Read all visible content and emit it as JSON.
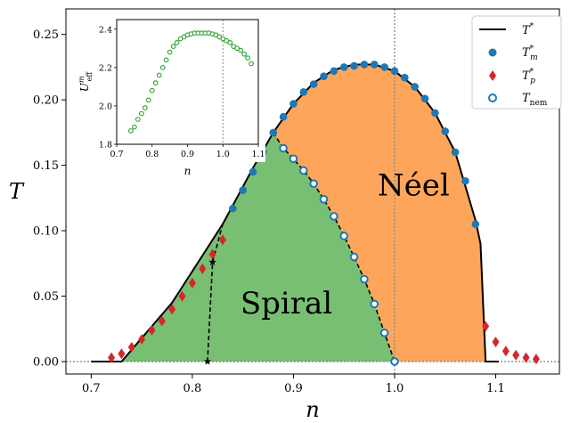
{
  "chart_data": [
    {
      "type": "line",
      "xlabel": "n",
      "ylabel": "T",
      "xlim": [
        0.675,
        1.163
      ],
      "ylim": [
        -0.0095,
        0.2695
      ],
      "xticks": [
        "0.7",
        "0.8",
        "0.9",
        "1.0",
        "1.1"
      ],
      "xtick_values": [
        0.7,
        0.8,
        0.9,
        1.0,
        1.1
      ],
      "yticks": [
        "0.00",
        "0.05",
        "0.10",
        "0.15",
        "0.20",
        "0.25"
      ],
      "ytick_values": [
        0.0,
        0.05,
        0.1,
        0.15,
        0.2,
        0.25
      ],
      "vertical_reference_x": 1.0,
      "horizontal_reference_y": 0.0,
      "region_labels": [
        {
          "text": "Spiral",
          "x": 0.893,
          "y": 0.045
        },
        {
          "text": "Néel",
          "x": 1.01,
          "y": 0.135
        }
      ],
      "legend": {
        "placement": "top-right",
        "entries": [
          {
            "label": "T*",
            "marker": "line",
            "color": "#000000"
          },
          {
            "label": "T*m",
            "marker": "circle",
            "color": "#1f77b4"
          },
          {
            "label": "T*p",
            "marker": "diamond",
            "color": "#d62728"
          },
          {
            "label": "Tnem",
            "marker": "open-circle",
            "color": "#1f77b4"
          }
        ]
      },
      "colors": {
        "spiral": "#78be73",
        "neel": "#fda65b",
        "tm": "#1f77b4",
        "tp": "#d62728",
        "tnem_edge": "#1f77b4"
      },
      "series": [
        {
          "name": "T*",
          "x": [
            0.7,
            0.73,
            0.78,
            0.83,
            0.86,
            0.88,
            0.9,
            0.92,
            0.94,
            0.96,
            0.98,
            1.0,
            1.02,
            1.04,
            1.06,
            1.08,
            1.085,
            1.09,
            1.103
          ],
          "y": [
            0.0,
            0.0,
            0.045,
            0.105,
            0.148,
            0.175,
            0.197,
            0.213,
            0.223,
            0.227,
            0.227,
            0.222,
            0.21,
            0.19,
            0.16,
            0.108,
            0.09,
            0.0,
            0.0
          ]
        },
        {
          "name": "T*m",
          "x": [
            0.84,
            0.85,
            0.86,
            0.87,
            0.88,
            0.89,
            0.9,
            0.91,
            0.92,
            0.93,
            0.94,
            0.95,
            0.96,
            0.97,
            0.98,
            0.99,
            1.0,
            1.01,
            1.02,
            1.03,
            1.04,
            1.05,
            1.06,
            1.07,
            1.08
          ],
          "y": [
            0.117,
            0.131,
            0.145,
            0.16,
            0.175,
            0.187,
            0.197,
            0.206,
            0.212,
            0.218,
            0.222,
            0.225,
            0.226,
            0.227,
            0.227,
            0.225,
            0.222,
            0.217,
            0.21,
            0.201,
            0.19,
            0.176,
            0.16,
            0.138,
            0.105
          ]
        },
        {
          "name": "T*p",
          "x": [
            0.72,
            0.73,
            0.74,
            0.75,
            0.76,
            0.77,
            0.78,
            0.79,
            0.8,
            0.81,
            0.82,
            0.83,
            1.09,
            1.1,
            1.11,
            1.12,
            1.13,
            1.14
          ],
          "y": [
            0.003,
            0.006,
            0.011,
            0.017,
            0.024,
            0.031,
            0.04,
            0.05,
            0.06,
            0.071,
            0.082,
            0.093,
            0.027,
            0.015,
            0.008,
            0.005,
            0.003,
            0.002
          ]
        },
        {
          "name": "Tnem",
          "x": [
            0.89,
            0.9,
            0.91,
            0.92,
            0.93,
            0.94,
            0.95,
            0.96,
            0.97,
            0.98,
            0.99,
            1.0
          ],
          "y": [
            0.163,
            0.155,
            0.146,
            0.136,
            0.124,
            0.111,
            0.096,
            0.08,
            0.063,
            0.044,
            0.022,
            0.0
          ]
        },
        {
          "name": "Spiral boundary",
          "x": [
            0.815,
            0.82
          ],
          "y": [
            0.0,
            0.076
          ]
        }
      ]
    },
    {
      "type": "scatter",
      "xlabel": "n",
      "ylabel": "U^m_eff",
      "xlim": [
        0.7,
        1.1
      ],
      "ylim": [
        1.8,
        2.45
      ],
      "xticks": [
        "0.7",
        "0.8",
        "0.9",
        "1.0",
        "1.1"
      ],
      "xtick_values": [
        0.7,
        0.8,
        0.9,
        1.0,
        1.1
      ],
      "yticks": [
        "1.8",
        "2.0",
        "2.2",
        "2.4"
      ],
      "ytick_values": [
        1.8,
        2.0,
        2.2,
        2.4
      ],
      "vertical_reference_x": 1.0,
      "color": "#2ca02c",
      "x": [
        0.74,
        0.75,
        0.76,
        0.77,
        0.78,
        0.79,
        0.8,
        0.81,
        0.82,
        0.83,
        0.84,
        0.85,
        0.86,
        0.87,
        0.88,
        0.89,
        0.9,
        0.91,
        0.92,
        0.93,
        0.94,
        0.95,
        0.96,
        0.97,
        0.98,
        0.99,
        1.0,
        1.01,
        1.02,
        1.03,
        1.04,
        1.05,
        1.06,
        1.07,
        1.08
      ],
      "y": [
        1.87,
        1.89,
        1.93,
        1.96,
        1.99,
        2.03,
        2.08,
        2.12,
        2.16,
        2.2,
        2.24,
        2.28,
        2.31,
        2.33,
        2.35,
        2.36,
        2.37,
        2.375,
        2.38,
        2.38,
        2.38,
        2.38,
        2.38,
        2.375,
        2.37,
        2.36,
        2.35,
        2.34,
        2.33,
        2.31,
        2.3,
        2.29,
        2.27,
        2.25,
        2.22
      ]
    }
  ]
}
